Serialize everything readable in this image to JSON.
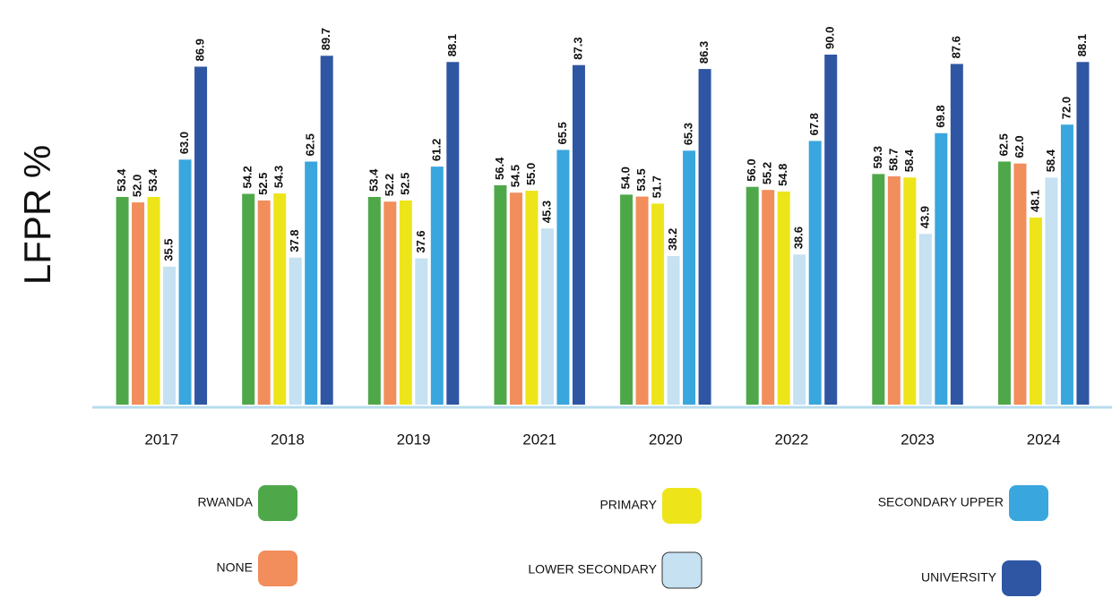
{
  "chart_data": {
    "type": "bar",
    "y_label": "LFPR %",
    "categories": [
      "2017",
      "2018",
      "2019",
      "2021",
      "2020",
      "2022",
      "2023",
      "2024"
    ],
    "ylim": [
      0,
      90
    ],
    "series": [
      {
        "name": "RWANDA",
        "color": "#4ea84a",
        "values": [
          53.4,
          54.2,
          53.4,
          56.4,
          54.0,
          56.0,
          59.3,
          62.5
        ],
        "value_labels": [
          "53.4",
          "54.2",
          "53.4",
          "56.4",
          "54.0",
          "56.0",
          "59.3",
          "62.5"
        ]
      },
      {
        "name": "NONE",
        "color": "#f28d5c",
        "values": [
          52.0,
          52.5,
          52.2,
          54.5,
          53.5,
          55.2,
          58.7,
          62.0
        ],
        "value_labels": [
          "52.0",
          "52.5",
          "52.2",
          "54.5",
          "53.5",
          "55.2",
          "58.7",
          "62.0"
        ]
      },
      {
        "name": "PRIMARY",
        "color": "#ede51a",
        "values": [
          53.4,
          54.3,
          52.5,
          55.0,
          51.7,
          54.8,
          58.4,
          48.1
        ],
        "value_labels": [
          "53.4",
          "54.3",
          "52.5",
          "55.0",
          "51.7",
          "54.8",
          "58.4",
          "48.1"
        ]
      },
      {
        "name": "LOWER SECONDARY",
        "color": "#c5e1f2",
        "values": [
          35.5,
          37.8,
          37.6,
          45.3,
          38.2,
          38.6,
          43.9,
          58.4
        ],
        "value_labels": [
          "35.5",
          "37.8",
          "37.6",
          "45.3",
          "38.2",
          "38.6",
          "43.9",
          "58.4"
        ]
      },
      {
        "name": "SECONDARY  UPPER",
        "color": "#3aa6de",
        "values": [
          63.0,
          62.5,
          61.2,
          65.5,
          65.3,
          67.8,
          69.8,
          72.0
        ],
        "value_labels": [
          "63.0",
          "62.5",
          "61.2",
          "65.5",
          "65.3",
          "67.8",
          "69.8",
          "72.0"
        ]
      },
      {
        "name": "UNIVERSITY",
        "color": "#2f56a3",
        "values": [
          86.9,
          89.7,
          88.1,
          87.3,
          86.3,
          90.0,
          87.6,
          88.1
        ],
        "value_labels": [
          "86.9",
          "89.7",
          "88.1",
          "87.3",
          "86.3",
          "90.0",
          "87.6",
          "88.1"
        ]
      }
    ]
  }
}
